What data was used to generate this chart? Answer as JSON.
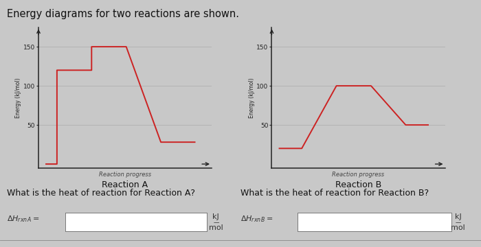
{
  "title": "Energy diagrams for two reactions are shown.",
  "background_color": "#c8c8c8",
  "plot_bg_color": "#c8c8c8",
  "line_color": "#cc2222",
  "axis_color": "#222222",
  "reaction_a": {
    "x": [
      0,
      0.5,
      0.5,
      2,
      2,
      3.5,
      3.5,
      5,
      5,
      6.5
    ],
    "y": [
      0,
      0,
      120,
      120,
      150,
      150,
      150,
      28,
      28,
      28
    ],
    "xlabel": "Reaction progress",
    "ylabel": "Energy (kJ/mol)",
    "title": "Reaction A",
    "yticks": [
      50,
      100,
      150
    ],
    "ylim": [
      -5,
      175
    ],
    "xlim": [
      -0.3,
      7.2
    ]
  },
  "reaction_b": {
    "x": [
      0,
      1,
      1,
      2.5,
      2.5,
      4,
      4,
      5.5,
      5.5,
      6.5
    ],
    "y": [
      20,
      20,
      20,
      100,
      100,
      100,
      100,
      50,
      50,
      50
    ],
    "xlabel": "Reaction progress",
    "ylabel": "Energy (kJ/mol)",
    "title": "Reaction B",
    "yticks": [
      50,
      100,
      150
    ],
    "ylim": [
      -5,
      175
    ],
    "xlim": [
      -0.3,
      7.2
    ]
  },
  "question_a": "What is the heat of reaction for Reaction A?",
  "question_b": "What is the heat of reaction for Reaction B?",
  "font_size_title": 10.5,
  "font_size_axis_tick": 6.5,
  "font_size_axis_label": 5.5,
  "font_size_chart_title": 9,
  "font_size_xlabel": 6,
  "font_size_question": 9,
  "font_size_answer_label": 8,
  "font_size_unit": 8
}
